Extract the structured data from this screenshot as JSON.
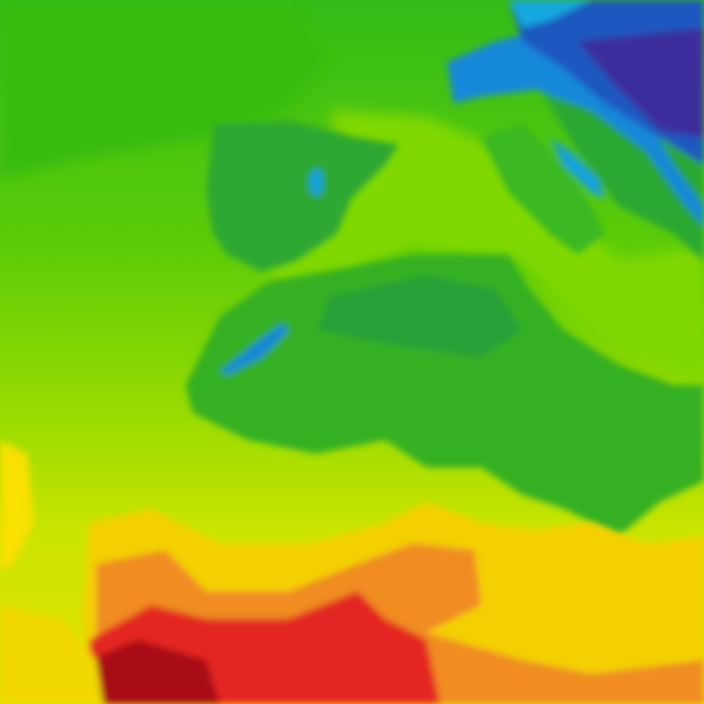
{
  "map": {
    "type": "temperature-heatmap",
    "palette": {
      "cold_deep": "#3a2a9a",
      "cold": "#1e5fc8",
      "cool": "#18a8e0",
      "mild_dark": "#2aa02a",
      "mild": "#3cc010",
      "warm_light": "#80d800",
      "warm": "#d8e800",
      "hot_yellow": "#f8e000",
      "hot_orange": "#f09020",
      "hotter": "#e83020",
      "hottest": "#a80010"
    }
  }
}
